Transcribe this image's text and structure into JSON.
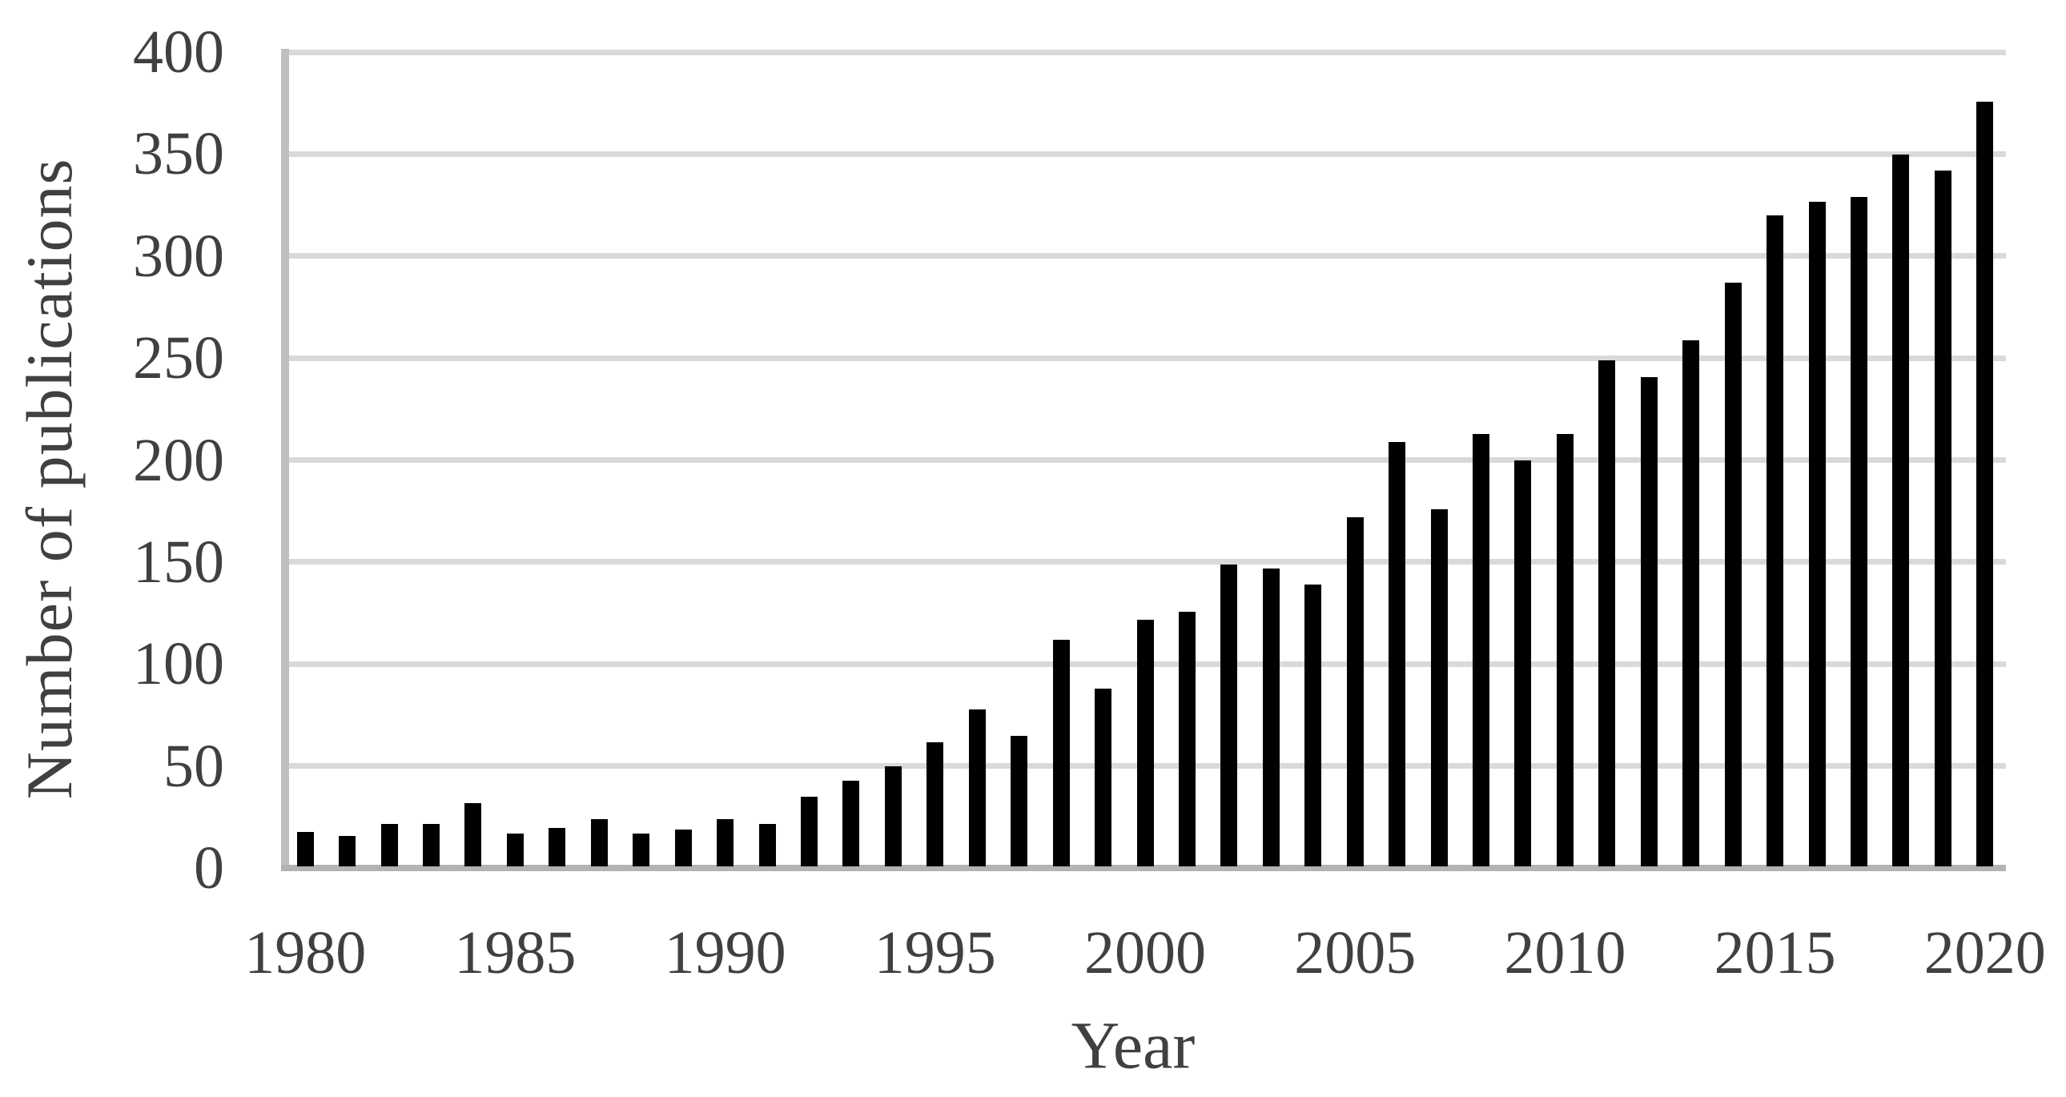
{
  "chart_data": {
    "type": "bar",
    "title": "",
    "xlabel": "Year",
    "ylabel": "Number of publications",
    "categories": [
      1980,
      1981,
      1982,
      1983,
      1984,
      1985,
      1986,
      1987,
      1988,
      1989,
      1990,
      1991,
      1992,
      1993,
      1994,
      1995,
      1996,
      1997,
      1998,
      1999,
      2000,
      2001,
      2002,
      2003,
      2004,
      2005,
      2006,
      2007,
      2008,
      2009,
      2010,
      2011,
      2012,
      2013,
      2014,
      2015,
      2016,
      2017,
      2018,
      2019,
      2020
    ],
    "values": [
      17,
      15,
      21,
      21,
      31,
      16,
      19,
      23,
      16,
      18,
      23,
      21,
      34,
      42,
      49,
      61,
      77,
      64,
      111,
      87,
      121,
      125,
      148,
      146,
      138,
      171,
      208,
      175,
      212,
      199,
      212,
      248,
      240,
      258,
      286,
      319,
      326,
      328,
      349,
      341,
      375
    ],
    "ylim": [
      0,
      400
    ],
    "ytick_interval": 50,
    "ytick_labels": [
      "0",
      "50",
      "100",
      "150",
      "200",
      "250",
      "300",
      "350",
      "400"
    ],
    "xtick_interval": 5,
    "xtick_labels": [
      "1980",
      "1985",
      "1990",
      "1995",
      "2000",
      "2005",
      "2010",
      "2015",
      "2020"
    ],
    "grid": "horizontal",
    "legend": "none",
    "colors": {
      "bar": "#000000",
      "gridline": "#d9d9d9",
      "y_axis_line": "#bfbfbf",
      "x_axis_line": "#b3b3b3",
      "tick_text": "#404040",
      "axis_title_text": "#404040",
      "background": "#ffffff"
    }
  }
}
